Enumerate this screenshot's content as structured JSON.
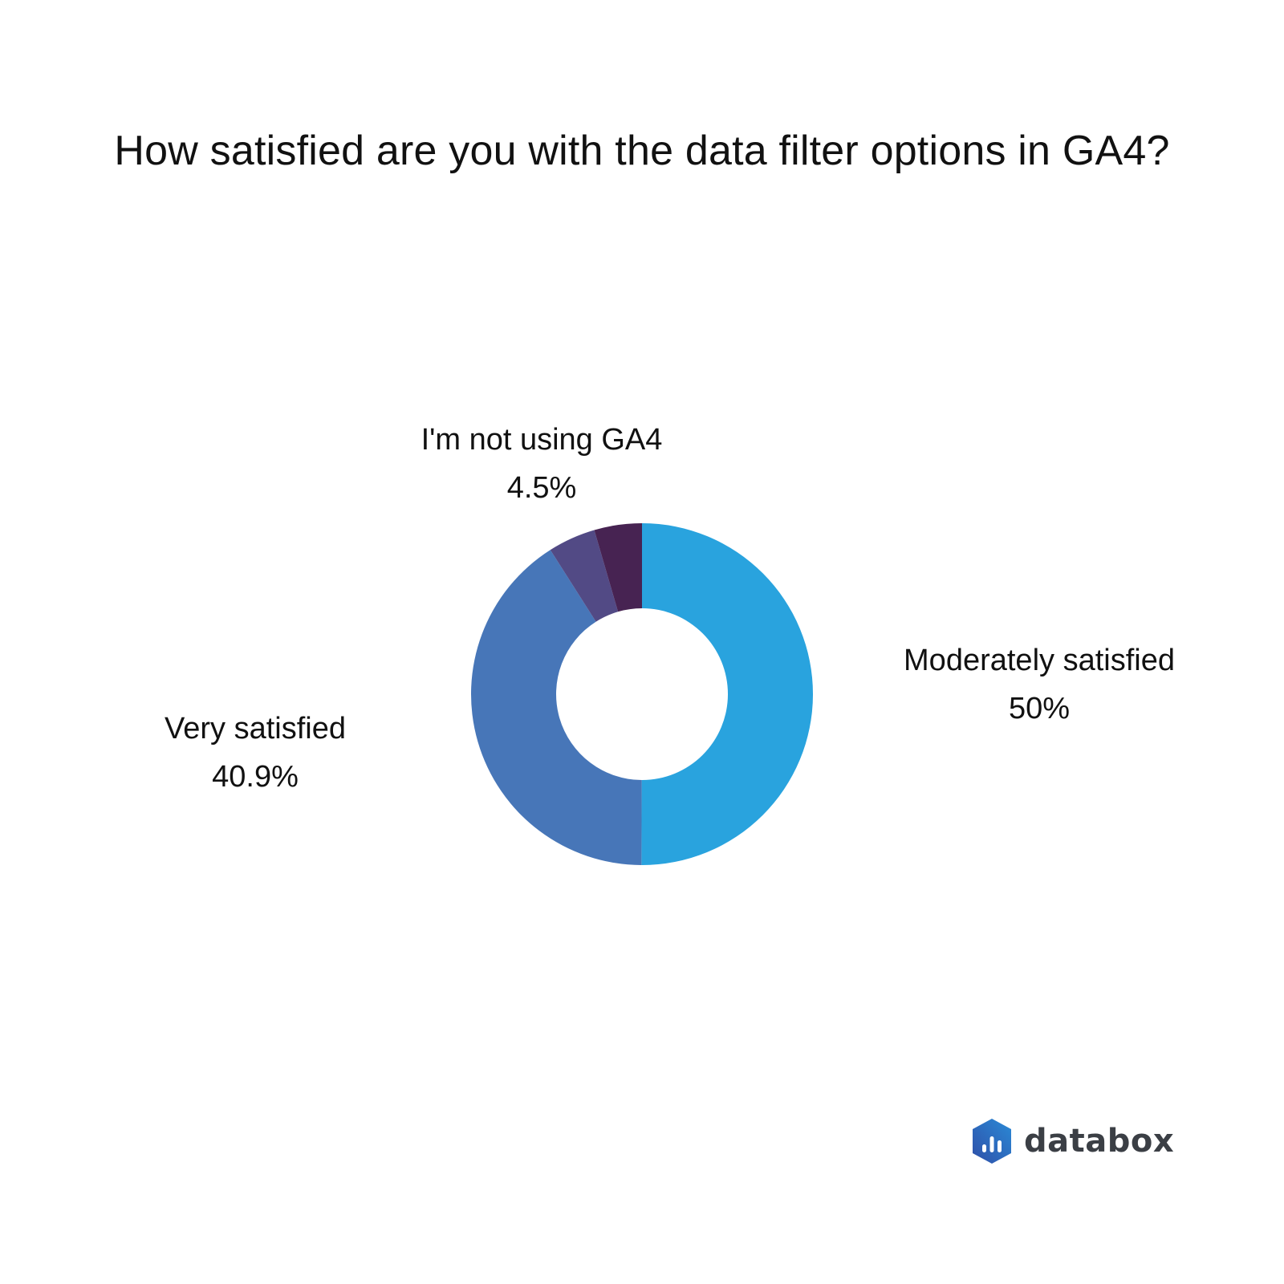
{
  "chart_data": {
    "type": "pie",
    "variant": "donut",
    "title": "How satisfied are you with the data filter options in GA4?",
    "slices": [
      {
        "name": "Moderately satisfied",
        "value": 50,
        "label": "50%",
        "color": "#29a3de"
      },
      {
        "name": "Very satisfied",
        "value": 40.9,
        "label": "40.9%",
        "color": "#4776b8"
      },
      {
        "name": "",
        "value": 4.5,
        "label": "",
        "color": "#524a85"
      },
      {
        "name": "I'm not using GA4",
        "value": 4.5,
        "label": "4.5%",
        "color": "#472352"
      }
    ],
    "legend": "none"
  },
  "brand": {
    "name": "databox",
    "icon": "databox-logo-icon",
    "colors": [
      "#2f4fa8",
      "#2a8ad6"
    ]
  }
}
